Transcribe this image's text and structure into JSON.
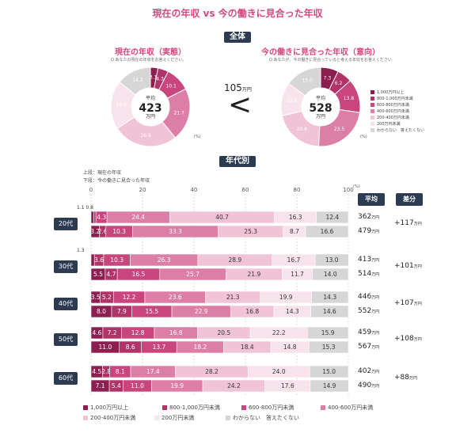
{
  "title": "現在の年収 vs 今の働きに見合った年収",
  "section1_badge": "全体",
  "section2_badge": "年代別",
  "colors": {
    "c1": "#8c1f4f",
    "c2": "#b13469",
    "c3": "#c8457d",
    "c4": "#dc7ea6",
    "c5": "#f0c3d6",
    "c6": "#f8e3ec",
    "c7": "#d6d6d6"
  },
  "donut_left": {
    "title": "現在の年収（実態）",
    "question": "Q.あなたの現在の年収をお答えください。",
    "center_small": "平均",
    "center_value": "423",
    "center_unit": "万円",
    "pct": "(%)",
    "values": [
      3.1,
      4.3,
      10.1,
      21.7,
      26.6,
      19.9,
      14.2
    ],
    "labels": [
      "3.1",
      "4.3",
      "10.1",
      "21.7",
      "26.6",
      "19.9",
      "14.2"
    ]
  },
  "donut_right": {
    "title": "今の働きに見合った年収（意向）",
    "question": "Q.あなたが、今の働きに見合っていると考える年収をお答えください",
    "center_small": "平均",
    "center_value": "528",
    "center_unit": "万円",
    "pct": "(%)",
    "values": [
      7.3,
      6.2,
      13.8,
      23.5,
      20.6,
      13.6,
      15.0
    ],
    "labels": [
      "7.3",
      "6.2",
      "13.8",
      "23.5",
      "20.6",
      "13.6",
      "15.0"
    ]
  },
  "gap": {
    "value": "105",
    "unit": "万円",
    "symbol": "<"
  },
  "donut_legend": [
    "1,000万円以上",
    "800-1,000万円未満",
    "600-800万円未満",
    "400-600万円未満",
    "200-400万円未満",
    "200万円未満",
    "わからない　答えたくない"
  ],
  "notes": {
    "upper": "上段：現在の年収",
    "lower": "下段：今の働きに見合った年収"
  },
  "headers": {
    "avg": "平均",
    "diff": "差分",
    "pct": "(%)"
  },
  "bottom_legend": [
    "1,000万円以上",
    "800-1,000万円未満",
    "600-800万円未満",
    "400-600万円未満",
    "200-400万円未満",
    "200万円未満",
    "わからない　答えたくない"
  ],
  "chart_data": {
    "type": "bar",
    "orientation": "horizontal-stacked-100",
    "ticks": [
      "0",
      "20",
      "40",
      "60",
      "80",
      "100"
    ],
    "xlim": [
      0,
      100
    ],
    "series_names": [
      "1,000万円以上",
      "800-1,000万円未満",
      "600-800万円未満",
      "400-600万円未満",
      "200-400万円未満",
      "200万円未満",
      "わからない　答えたくない"
    ],
    "groups": [
      {
        "age": "20代",
        "diff": "+117",
        "diff_unit": "万円",
        "rows": [
          {
            "values": [
              1.1,
              0.8,
              4.3,
              24.4,
              40.7,
              16.3,
              12.4
            ],
            "labels": [
              "",
              "",
              "4.3",
              "24.4",
              "40.7",
              "16.3",
              "12.4"
            ],
            "avg": "362",
            "avg_unit": "万円"
          },
          {
            "values": [
              3.2,
              2.6,
              10.3,
              33.3,
              25.3,
              8.7,
              16.6
            ],
            "labels": [
              "3.2",
              "2.6",
              "10.3",
              "33.3",
              "25.3",
              "8.7",
              "16.6"
            ],
            "avg": "479",
            "avg_unit": "万円"
          }
        ],
        "outside_labels": "1.1 0.8"
      },
      {
        "age": "30代",
        "diff": "+101",
        "diff_unit": "万円",
        "rows": [
          {
            "values": [
              1.3,
              3.6,
              10.3,
              26.3,
              28.9,
              16.7,
              13.0
            ],
            "labels": [
              "",
              "3.6",
              "10.3",
              "26.3",
              "28.9",
              "16.7",
              "13.0"
            ],
            "avg": "413",
            "avg_unit": "万円"
          },
          {
            "values": [
              5.5,
              4.7,
              16.5,
              25.7,
              21.9,
              11.7,
              14.0
            ],
            "labels": [
              "5.5",
              "4.7",
              "16.5",
              "25.7",
              "21.9",
              "11.7",
              "14.0"
            ],
            "avg": "514",
            "avg_unit": "万円"
          }
        ],
        "outside_labels": "1.3"
      },
      {
        "age": "40代",
        "diff": "+107",
        "diff_unit": "万円",
        "rows": [
          {
            "values": [
              3.5,
              5.2,
              12.2,
              23.6,
              21.3,
              19.9,
              14.3
            ],
            "labels": [
              "3.5",
              "5.2",
              "12.2",
              "23.6",
              "21.3",
              "19.9",
              "14.3"
            ],
            "avg": "446",
            "avg_unit": "万円"
          },
          {
            "values": [
              8.0,
              7.9,
              15.5,
              22.9,
              16.8,
              14.3,
              14.6
            ],
            "labels": [
              "8.0",
              "7.9",
              "15.5",
              "22.9",
              "16.8",
              "14.3",
              "14.6"
            ],
            "avg": "552",
            "avg_unit": "万円"
          }
        ],
        "outside_labels": ""
      },
      {
        "age": "50代",
        "diff": "+108",
        "diff_unit": "万円",
        "rows": [
          {
            "values": [
              4.6,
              7.2,
              12.8,
              16.8,
              20.5,
              22.2,
              15.9
            ],
            "labels": [
              "4.6",
              "7.2",
              "12.8",
              "16.8",
              "20.5",
              "22.2",
              "15.9"
            ],
            "avg": "459",
            "avg_unit": "万円"
          },
          {
            "values": [
              11.0,
              8.6,
              13.7,
              18.2,
              18.4,
              14.8,
              15.3
            ],
            "labels": [
              "11.0",
              "8.6",
              "13.7",
              "18.2",
              "18.4",
              "14.8",
              "15.3"
            ],
            "avg": "567",
            "avg_unit": "万円"
          }
        ],
        "outside_labels": ""
      },
      {
        "age": "60代",
        "diff": "+88",
        "diff_unit": "万円",
        "rows": [
          {
            "values": [
              4.5,
              2.8,
              8.1,
              17.4,
              28.2,
              24.0,
              15.0
            ],
            "labels": [
              "4.5",
              "2.8",
              "8.1",
              "17.4",
              "28.2",
              "24.0",
              "15.0"
            ],
            "avg": "402",
            "avg_unit": "万円"
          },
          {
            "values": [
              7.1,
              5.4,
              11.0,
              19.9,
              24.2,
              17.6,
              14.9
            ],
            "labels": [
              "7.1",
              "5.4",
              "11.0",
              "19.9",
              "24.2",
              "17.6",
              "14.9"
            ],
            "avg": "490",
            "avg_unit": "万円"
          }
        ],
        "outside_labels": ""
      }
    ]
  }
}
